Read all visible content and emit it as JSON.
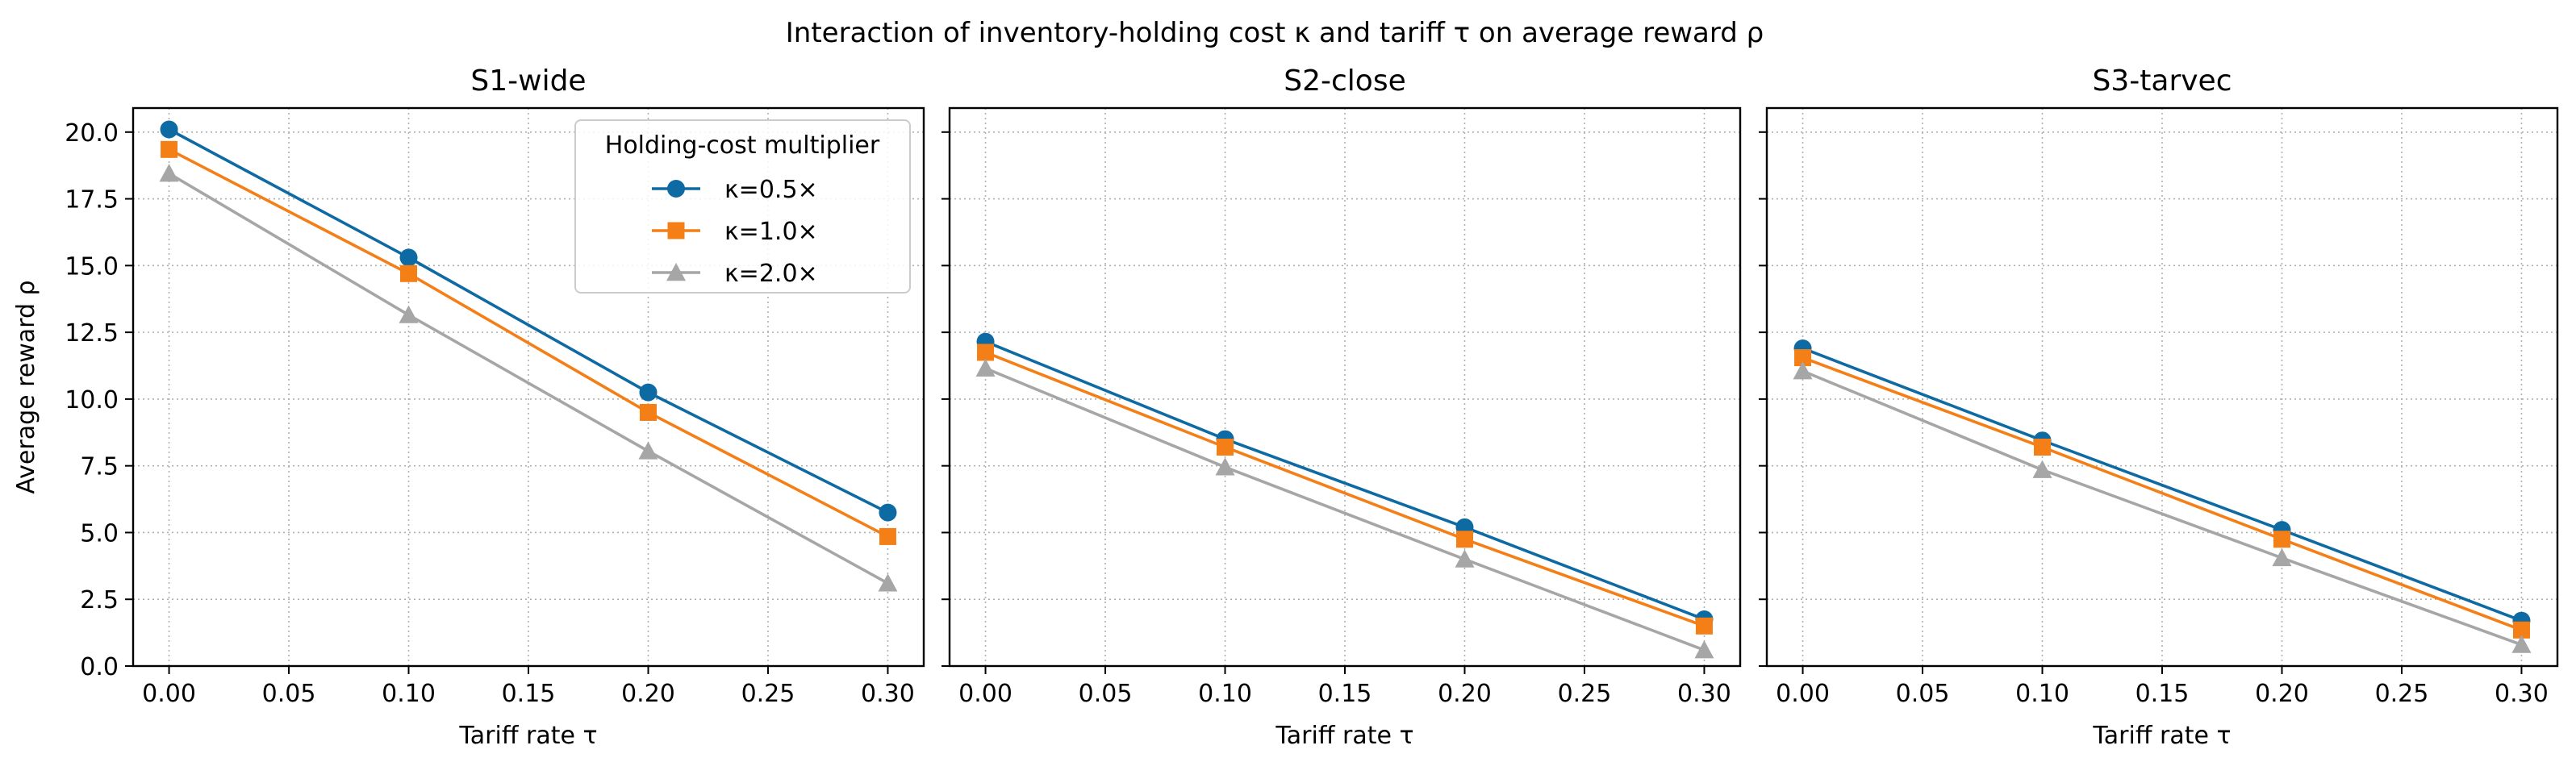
{
  "figure_title": "Interaction of inventory-holding cost κ and tariff τ on average reward ρ",
  "legend": {
    "title": "Holding-cost multiplier"
  },
  "chart_data": [
    {
      "type": "line",
      "title": "S1-wide",
      "xlabel": "Tariff rate τ",
      "ylabel": "Average reward ρ",
      "x": [
        0.0,
        0.1,
        0.2,
        0.3
      ],
      "xlim": [
        -0.015,
        0.315
      ],
      "ylim": [
        0,
        20.9
      ],
      "xticks": [
        "0.00",
        "0.05",
        "0.10",
        "0.15",
        "0.20",
        "0.25",
        "0.30"
      ],
      "yticks": [
        "0.0",
        "2.5",
        "5.0",
        "7.5",
        "10.0",
        "12.5",
        "15.0",
        "17.5",
        "20.0"
      ],
      "grid": true,
      "legend_position": "top-right",
      "series": [
        {
          "name": "κ=0.5×",
          "marker": "circle",
          "color": "#0e6aa3",
          "values": [
            20.1,
            15.3,
            10.25,
            5.75
          ]
        },
        {
          "name": "κ=1.0×",
          "marker": "square",
          "color": "#f47f17",
          "values": [
            19.35,
            14.7,
            9.5,
            4.85
          ]
        },
        {
          "name": "κ=2.0×",
          "marker": "triangle",
          "color": "#a6a6a6",
          "values": [
            18.45,
            13.15,
            8.05,
            3.1
          ]
        }
      ]
    },
    {
      "type": "line",
      "title": "S2-close",
      "xlabel": "Tariff rate τ",
      "ylabel": "",
      "x": [
        0.0,
        0.1,
        0.2,
        0.3
      ],
      "xlim": [
        -0.015,
        0.315
      ],
      "ylim": [
        0,
        20.9
      ],
      "xticks": [
        "0.00",
        "0.05",
        "0.10",
        "0.15",
        "0.20",
        "0.25",
        "0.30"
      ],
      "yticks": [],
      "grid": true,
      "series": [
        {
          "name": "κ=0.5×",
          "marker": "circle",
          "color": "#0e6aa3",
          "values": [
            12.15,
            8.5,
            5.2,
            1.75
          ]
        },
        {
          "name": "κ=1.0×",
          "marker": "square",
          "color": "#f47f17",
          "values": [
            11.75,
            8.2,
            4.75,
            1.5
          ]
        },
        {
          "name": "κ=2.0×",
          "marker": "triangle",
          "color": "#a6a6a6",
          "values": [
            11.15,
            7.45,
            4.0,
            0.6
          ]
        }
      ]
    },
    {
      "type": "line",
      "title": "S3-tarvec",
      "xlabel": "Tariff rate τ",
      "ylabel": "",
      "x": [
        0.0,
        0.1,
        0.2,
        0.3
      ],
      "xlim": [
        -0.015,
        0.315
      ],
      "ylim": [
        0,
        20.9
      ],
      "xticks": [
        "0.00",
        "0.05",
        "0.10",
        "0.15",
        "0.20",
        "0.25",
        "0.30"
      ],
      "yticks": [],
      "grid": true,
      "series": [
        {
          "name": "κ=0.5×",
          "marker": "circle",
          "color": "#0e6aa3",
          "values": [
            11.9,
            8.45,
            5.1,
            1.7
          ]
        },
        {
          "name": "κ=1.0×",
          "marker": "square",
          "color": "#f47f17",
          "values": [
            11.55,
            8.2,
            4.75,
            1.35
          ]
        },
        {
          "name": "κ=2.0×",
          "marker": "triangle",
          "color": "#a6a6a6",
          "values": [
            11.05,
            7.35,
            4.05,
            0.8
          ]
        }
      ]
    }
  ]
}
